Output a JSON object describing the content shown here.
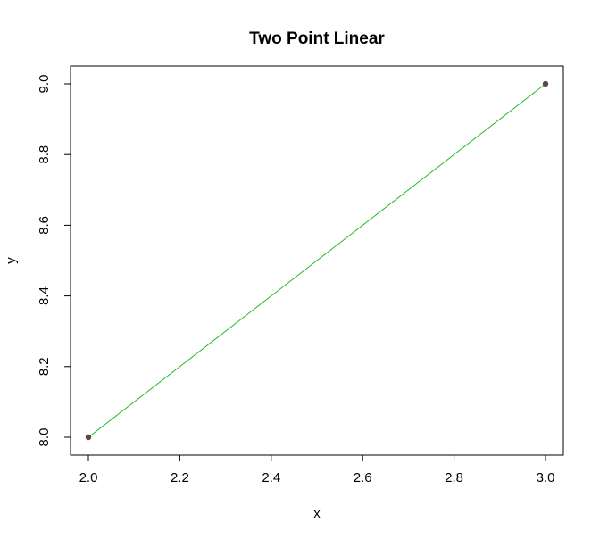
{
  "chart_data": {
    "type": "line",
    "title": "Two Point Linear",
    "xlabel": "x",
    "ylabel": "y",
    "x": [
      2.0,
      3.0
    ],
    "y": [
      8.0,
      9.0
    ],
    "xlim": [
      2.0,
      3.0
    ],
    "ylim": [
      8.0,
      9.0
    ],
    "xticks": [
      2.0,
      2.2,
      2.4,
      2.6,
      2.8,
      3.0
    ],
    "xtick_labels": [
      "2.0",
      "2.2",
      "2.4",
      "2.6",
      "2.8",
      "3.0"
    ],
    "yticks": [
      8.0,
      8.2,
      8.4,
      8.6,
      8.8,
      9.0
    ],
    "ytick_labels": [
      "8.0",
      "8.2",
      "8.4",
      "8.6",
      "8.8",
      "9.0"
    ],
    "grid": false,
    "line_color": "#22bb22",
    "point_color": "#5a4a42"
  }
}
